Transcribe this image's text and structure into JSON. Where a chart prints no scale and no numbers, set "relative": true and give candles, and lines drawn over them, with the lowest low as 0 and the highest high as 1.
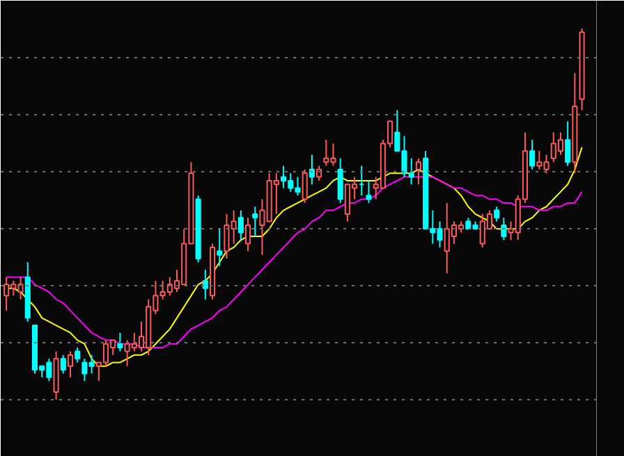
{
  "chart_data": {
    "type": "candlestick",
    "relative": true,
    "grid": "y",
    "categories": [
      null,
      null,
      null,
      null,
      null,
      null,
      null,
      null,
      null,
      null,
      null,
      null,
      null,
      null,
      null,
      null,
      null,
      null,
      null,
      null,
      null,
      null,
      null,
      null,
      null,
      null,
      null,
      null,
      null,
      null,
      null,
      null,
      null,
      null,
      null,
      null,
      null,
      null,
      null,
      null,
      null,
      null,
      null,
      null,
      null,
      null,
      null,
      null,
      null,
      null,
      null,
      null,
      null,
      null,
      null,
      null,
      null,
      null,
      null,
      null,
      null,
      null,
      null,
      null,
      null,
      null,
      null,
      null,
      null,
      null,
      null,
      null,
      null,
      null,
      null,
      null,
      null,
      null,
      null,
      null,
      null,
      null
    ],
    "ohlc": [
      [
        0.28,
        0.33,
        0.24,
        0.31
      ],
      [
        0.3,
        0.32,
        0.28,
        0.31
      ],
      [
        0.29,
        0.33,
        0.27,
        0.31
      ],
      [
        0.33,
        0.37,
        0.21,
        0.22
      ],
      [
        0.2,
        0.2,
        0.07,
        0.08
      ],
      [
        0.09,
        0.09,
        0.06,
        0.08
      ],
      [
        0.1,
        0.11,
        0.05,
        0.06
      ],
      [
        0.02,
        0.13,
        0,
        0.11
      ],
      [
        0.11,
        0.12,
        0.07,
        0.08
      ],
      [
        0.09,
        0.13,
        0.06,
        0.12
      ],
      [
        0.13,
        0.14,
        0.1,
        0.11
      ],
      [
        0.1,
        0.11,
        0.05,
        0.07
      ],
      [
        0.1,
        0.12,
        0.07,
        0.09
      ],
      [
        0.09,
        0.1,
        0.05,
        0.1
      ],
      [
        0.1,
        0.16,
        0.09,
        0.15
      ],
      [
        0.14,
        0.16,
        0.12,
        0.16
      ],
      [
        0.15,
        0.18,
        0.13,
        0.14
      ],
      [
        0.13,
        0.16,
        0.09,
        0.15
      ],
      [
        0.14,
        0.18,
        0.13,
        0.15
      ],
      [
        0.14,
        0.21,
        0.13,
        0.17
      ],
      [
        0.14,
        0.27,
        0.12,
        0.25
      ],
      [
        0.24,
        0.32,
        0.23,
        0.28
      ],
      [
        0.28,
        0.32,
        0.27,
        0.29
      ],
      [
        0.29,
        0.33,
        0.28,
        0.31
      ],
      [
        0.3,
        0.35,
        0.29,
        0.32
      ],
      [
        0.31,
        0.46,
        0.31,
        0.42
      ],
      [
        0.42,
        0.64,
        0.42,
        0.61
      ],
      [
        0.54,
        0.55,
        0.37,
        0.38
      ],
      [
        0.32,
        0.35,
        0.27,
        0.3
      ],
      [
        0.28,
        0.42,
        0.27,
        0.41
      ],
      [
        0.4,
        0.46,
        0.36,
        0.39
      ],
      [
        0.4,
        0.5,
        0.38,
        0.47
      ],
      [
        0.46,
        0.51,
        0.42,
        0.48
      ],
      [
        0.49,
        0.51,
        0.43,
        0.45
      ],
      [
        0.42,
        0.49,
        0.4,
        0.47
      ],
      [
        0.5,
        0.52,
        0.44,
        0.49
      ],
      [
        0.47,
        0.54,
        0.39,
        0.51
      ],
      [
        0.48,
        0.61,
        0.48,
        0.59
      ],
      [
        0.58,
        0.61,
        0.5,
        0.59
      ],
      [
        0.6,
        0.63,
        0.57,
        0.59
      ],
      [
        0.59,
        0.61,
        0.56,
        0.57
      ],
      [
        0.57,
        0.6,
        0.55,
        0.56
      ],
      [
        0.54,
        0.62,
        0.53,
        0.61
      ],
      [
        0.62,
        0.66,
        0.58,
        0.6
      ],
      [
        0.6,
        0.63,
        0.59,
        0.62
      ],
      [
        0.64,
        0.7,
        0.63,
        0.65
      ],
      [
        0.64,
        0.69,
        0.63,
        0.65
      ],
      [
        0.62,
        0.65,
        0.53,
        0.54
      ],
      [
        0.5,
        0.58,
        0.48,
        0.58
      ],
      [
        0.57,
        0.6,
        0.54,
        0.58
      ],
      [
        0.58,
        0.63,
        0.55,
        0.58
      ],
      [
        0.55,
        0.59,
        0.53,
        0.54
      ],
      [
        0.57,
        0.6,
        0.54,
        0.58
      ],
      [
        0.57,
        0.7,
        0.57,
        0.69
      ],
      [
        0.69,
        0.75,
        0.68,
        0.75
      ],
      [
        0.72,
        0.78,
        0.67,
        0.67
      ],
      [
        0.67,
        0.71,
        0.6,
        0.61
      ],
      [
        0.61,
        0.65,
        0.58,
        0.6
      ],
      [
        0.62,
        0.65,
        0.58,
        0.64
      ],
      [
        0.65,
        0.67,
        0.46,
        0.46
      ],
      [
        0.46,
        0.51,
        0.42,
        0.45
      ],
      [
        0.46,
        0.48,
        0.41,
        0.43
      ],
      [
        0.4,
        0.53,
        0.34,
        0.46
      ],
      [
        0.44,
        0.48,
        0.42,
        0.47
      ],
      [
        0.46,
        0.48,
        0.45,
        0.47
      ],
      [
        0.48,
        0.49,
        0.46,
        0.46
      ],
      [
        0.47,
        0.48,
        0.46,
        0.46
      ],
      [
        0.42,
        0.5,
        0.41,
        0.48
      ],
      [
        0.46,
        0.51,
        0.46,
        0.5
      ],
      [
        0.51,
        0.52,
        0.48,
        0.49
      ],
      [
        0.47,
        0.49,
        0.43,
        0.44
      ],
      [
        0.45,
        0.48,
        0.43,
        0.46
      ],
      [
        0.45,
        0.55,
        0.43,
        0.54
      ],
      [
        0.54,
        0.72,
        0.53,
        0.67
      ],
      [
        0.67,
        0.7,
        0.62,
        0.63
      ],
      [
        0.63,
        0.67,
        0.62,
        0.64
      ],
      [
        0.62,
        0.66,
        0.61,
        0.64
      ],
      [
        0.65,
        0.72,
        0.64,
        0.69
      ],
      [
        0.67,
        0.72,
        0.66,
        0.7
      ],
      [
        0.7,
        0.75,
        0.63,
        0.64
      ],
      [
        0.64,
        0.88,
        0.61,
        0.79
      ],
      [
        0.81,
        1.0,
        0.78,
        0.99
      ]
    ],
    "colors": [
      "#ff5a5a",
      "#ff5a5a",
      "#ff5a5a",
      "#00ffff",
      "#00ffff",
      "#00ffff",
      "#00ffff",
      "#ff5a5a",
      "#00ffff",
      "#ff5a5a",
      "#00ffff",
      "#00ffff",
      "#00ffff",
      "#ff5a5a",
      "#ff5a5a",
      "#ff5a5a",
      "#00ffff",
      "#ff5a5a",
      "#ff5a5a",
      "#ff5a5a",
      "#ff5a5a",
      "#ff5a5a",
      "#ff5a5a",
      "#ff5a5a",
      "#ff5a5a",
      "#ff5a5a",
      "#ff5a5a",
      "#00ffff",
      "#00ffff",
      "#ff5a5a",
      "#00ffff",
      "#ff5a5a",
      "#ff5a5a",
      "#00ffff",
      "#ff5a5a",
      "#00ffff",
      "#ff5a5a",
      "#ff5a5a",
      "#ff5a5a",
      "#00ffff",
      "#00ffff",
      "#00ffff",
      "#ff5a5a",
      "#00ffff",
      "#ff5a5a",
      "#ff5a5a",
      "#ff5a5a",
      "#00ffff",
      "#ff5a5a",
      "#ff5a5a",
      "#00ffff",
      "#00ffff",
      "#ff5a5a",
      "#ff5a5a",
      "#ff5a5a",
      "#00ffff",
      "#00ffff",
      "#00ffff",
      "#ff5a5a",
      "#00ffff",
      "#00ffff",
      "#00ffff",
      "#ff5a5a",
      "#ff5a5a",
      "#ff5a5a",
      "#00ffff",
      "#00ffff",
      "#ff5a5a",
      "#ff5a5a",
      "#00ffff",
      "#00ffff",
      "#ff5a5a",
      "#ff5a5a",
      "#ff5a5a",
      "#00ffff",
      "#ff5a5a",
      "#ff5a5a",
      "#ff5a5a",
      "#ff5a5a",
      "#00ffff",
      "#ff5a5a",
      "#ff5a5a"
    ],
    "series": [
      {
        "type": "line",
        "color": "#ffff00",
        "values": [
          0.3,
          0.3,
          0.29,
          0.27,
          0.25,
          0.22,
          0.21,
          0.2,
          0.19,
          0.18,
          0.16,
          0.15,
          0.11,
          0.09,
          0.09,
          0.1,
          0.1,
          0.11,
          0.12,
          0.12,
          0.13,
          0.15,
          0.17,
          0.19,
          0.22,
          0.25,
          0.28,
          0.31,
          0.32,
          0.34,
          0.37,
          0.4,
          0.41,
          0.43,
          0.44,
          0.44,
          0.44,
          0.46,
          0.49,
          0.51,
          0.52,
          0.53,
          0.54,
          0.55,
          0.56,
          0.57,
          0.59,
          0.6,
          0.59,
          0.59,
          0.59,
          0.59,
          0.59,
          0.6,
          0.61,
          0.61,
          0.61,
          0.61,
          0.62,
          0.61,
          0.6,
          0.59,
          0.58,
          0.57,
          0.55,
          0.52,
          0.5,
          0.49,
          0.48,
          0.46,
          0.46,
          0.46,
          0.46,
          0.48,
          0.49,
          0.51,
          0.52,
          0.54,
          0.56,
          0.58,
          0.62,
          0.68
        ]
      },
      {
        "type": "line",
        "color": "#ff00ff",
        "values": [
          0.33,
          0.33,
          0.33,
          0.33,
          0.31,
          0.3,
          0.29,
          0.27,
          0.26,
          0.24,
          0.22,
          0.2,
          0.18,
          0.17,
          0.16,
          0.16,
          0.15,
          0.15,
          0.15,
          0.14,
          0.14,
          0.14,
          0.14,
          0.15,
          0.15,
          0.17,
          0.19,
          0.2,
          0.21,
          0.22,
          0.24,
          0.25,
          0.27,
          0.29,
          0.31,
          0.33,
          0.35,
          0.37,
          0.39,
          0.41,
          0.43,
          0.45,
          0.46,
          0.48,
          0.49,
          0.51,
          0.51,
          0.52,
          0.53,
          0.53,
          0.54,
          0.54,
          0.55,
          0.57,
          0.58,
          0.59,
          0.6,
          0.6,
          0.6,
          0.6,
          0.6,
          0.59,
          0.58,
          0.57,
          0.57,
          0.56,
          0.55,
          0.55,
          0.54,
          0.54,
          0.53,
          0.53,
          0.52,
          0.52,
          0.52,
          0.51,
          0.51,
          0.52,
          0.52,
          0.53,
          0.53,
          0.56
        ]
      }
    ]
  }
}
